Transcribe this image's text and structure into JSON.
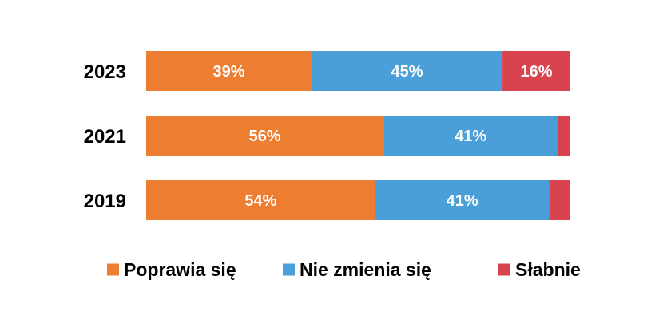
{
  "chart_data": {
    "type": "bar",
    "orientation": "horizontal",
    "stacked": true,
    "normalized_to": 100,
    "categories": [
      "2023",
      "2021",
      "2019"
    ],
    "series": [
      {
        "name": "Poprawia się",
        "color": "#ED7D31",
        "values": [
          39,
          56,
          54
        ],
        "labels": [
          "39%",
          "56%",
          "54%"
        ]
      },
      {
        "name": "Nie zmienia się",
        "color": "#4A9FD8",
        "values": [
          45,
          41,
          41
        ],
        "labels": [
          "45%",
          "41%",
          "41%"
        ]
      },
      {
        "name": "Słabnie",
        "color": "#D9434D",
        "values": [
          16,
          3,
          5
        ],
        "labels": [
          "16%",
          "",
          ""
        ]
      }
    ],
    "xlim": [
      0,
      100
    ],
    "grid": false,
    "legend_position": "bottom"
  }
}
